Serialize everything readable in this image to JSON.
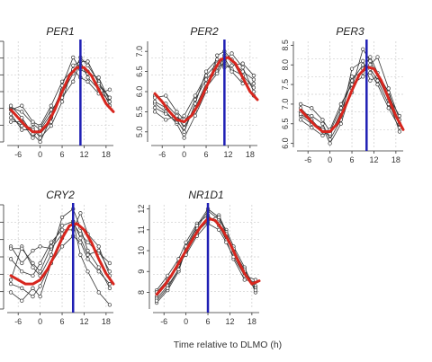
{
  "figure": {
    "xlabel": "Time relative to DLMO (h)"
  },
  "colors": {
    "individual": "#333333",
    "mean_fit": "#d7261e",
    "dlmo_line": "#1f1fb4",
    "grid": "#cccccc"
  },
  "chart_data": [
    {
      "type": "line",
      "title": "PER1",
      "xlabel": "",
      "ylabel": "",
      "x_ticks": [
        "-6",
        "0",
        "6",
        "12",
        "18"
      ],
      "y_ticks": [],
      "xlim": [
        -9,
        20
      ],
      "ylim": [
        5.0,
        7.5
      ],
      "vline_x": 11,
      "grid": true,
      "series": [
        {
          "x": [
            -8,
            -5,
            -2,
            0,
            3,
            6,
            9,
            11,
            13,
            16,
            19
          ],
          "y": [
            5.85,
            5.75,
            5.45,
            5.3,
            5.7,
            6.3,
            6.8,
            6.9,
            6.75,
            6.4,
            6.1
          ]
        },
        {
          "x": [
            -8,
            -5,
            -2,
            0,
            3,
            6,
            9,
            11,
            13,
            16,
            19
          ],
          "y": [
            5.9,
            5.6,
            5.2,
            5.0,
            5.6,
            6.2,
            6.7,
            7.1,
            6.9,
            6.5,
            5.9
          ]
        },
        {
          "x": [
            -8,
            -5,
            -2,
            0,
            3,
            6,
            9,
            11,
            13,
            16,
            19
          ],
          "y": [
            5.6,
            5.4,
            5.35,
            5.1,
            5.4,
            6.0,
            6.9,
            7.0,
            6.6,
            6.3,
            6.0
          ]
        },
        {
          "x": [
            -8,
            -5,
            -2,
            0,
            3,
            6,
            9,
            11,
            13,
            16,
            19
          ],
          "y": [
            5.8,
            5.9,
            5.5,
            5.4,
            5.9,
            6.5,
            6.8,
            6.6,
            6.5,
            6.2,
            6.3
          ]
        },
        {
          "x": [
            -8,
            -5,
            -2,
            0,
            3,
            6,
            9,
            11,
            13,
            16,
            19
          ],
          "y": [
            5.7,
            5.3,
            5.3,
            5.2,
            5.5,
            6.4,
            7.1,
            6.8,
            6.7,
            6.6,
            6.0
          ]
        },
        {
          "x": [
            -8,
            -5,
            -2,
            0,
            3,
            6,
            9,
            11,
            13,
            16,
            19
          ],
          "y": [
            5.5,
            5.5,
            5.1,
            5.35,
            5.8,
            6.1,
            6.5,
            7.0,
            7.0,
            6.45,
            6.1
          ]
        }
      ],
      "fit": {
        "x": [
          -8,
          -6,
          -4,
          -2,
          0,
          2,
          4,
          6,
          8,
          10,
          12,
          14,
          16,
          18,
          20
        ],
        "y": [
          5.8,
          5.6,
          5.4,
          5.25,
          5.25,
          5.45,
          5.8,
          6.25,
          6.65,
          6.85,
          6.85,
          6.65,
          6.3,
          5.95,
          5.75
        ]
      }
    },
    {
      "type": "line",
      "title": "PER2",
      "xlabel": "",
      "ylabel": "",
      "x_ticks": [
        "-6",
        "0",
        "6",
        "12",
        "18"
      ],
      "y_ticks": [
        "5.0",
        "5.5",
        "6.0",
        "6.5",
        "7.0"
      ],
      "xlim": [
        -9,
        20
      ],
      "ylim": [
        4.75,
        7.25
      ],
      "vline_x": 11,
      "grid": true,
      "series": [
        {
          "x": [
            -8,
            -5,
            -2,
            0,
            3,
            6,
            9,
            11,
            13,
            16,
            19
          ],
          "y": [
            5.9,
            5.7,
            5.4,
            5.1,
            5.6,
            6.2,
            6.5,
            6.9,
            6.75,
            6.5,
            6.3
          ]
        },
        {
          "x": [
            -8,
            -5,
            -2,
            0,
            3,
            6,
            9,
            11,
            13,
            16,
            19
          ],
          "y": [
            5.7,
            5.5,
            5.2,
            4.85,
            5.4,
            6.0,
            6.9,
            7.0,
            6.8,
            6.3,
            5.9
          ]
        },
        {
          "x": [
            -8,
            -5,
            -2,
            0,
            3,
            6,
            9,
            11,
            13,
            16,
            19
          ],
          "y": [
            5.5,
            5.3,
            5.4,
            5.2,
            5.8,
            6.3,
            6.6,
            6.7,
            6.55,
            6.4,
            6.1
          ]
        },
        {
          "x": [
            -8,
            -5,
            -2,
            0,
            3,
            6,
            9,
            11,
            13,
            16,
            19
          ],
          "y": [
            5.85,
            5.9,
            5.5,
            5.3,
            5.5,
            6.1,
            6.45,
            6.75,
            6.95,
            6.6,
            6.0
          ]
        },
        {
          "x": [
            -8,
            -5,
            -2,
            0,
            3,
            6,
            9,
            11,
            13,
            16,
            19
          ],
          "y": [
            5.6,
            5.45,
            5.25,
            5.4,
            5.9,
            6.4,
            6.7,
            6.85,
            6.5,
            6.2,
            6.2
          ]
        },
        {
          "x": [
            -8,
            -5,
            -2,
            0,
            3,
            6,
            9,
            11,
            13,
            16,
            19
          ],
          "y": [
            5.75,
            5.6,
            5.3,
            5.0,
            5.7,
            6.5,
            6.8,
            6.6,
            6.65,
            6.7,
            6.4
          ]
        }
      ],
      "fit": {
        "x": [
          -8,
          -6,
          -4,
          -2,
          0,
          2,
          4,
          6,
          8,
          10,
          12,
          14,
          16,
          18,
          20
        ],
        "y": [
          5.95,
          5.75,
          5.5,
          5.3,
          5.25,
          5.4,
          5.7,
          6.1,
          6.5,
          6.8,
          6.85,
          6.7,
          6.35,
          6.0,
          5.8
        ]
      }
    },
    {
      "type": "line",
      "title": "PER3",
      "xlabel": "",
      "ylabel": "",
      "x_ticks": [
        "-6",
        "0",
        "6",
        "12",
        "18"
      ],
      "y_ticks": [
        "6.0",
        "6.5",
        "7.0",
        "7.5",
        "8.0",
        "8.5"
      ],
      "xlim": [
        -9,
        20
      ],
      "ylim": [
        5.9,
        8.6
      ],
      "vline_x": 10,
      "grid": true,
      "series": [
        {
          "x": [
            -8,
            -5,
            -2,
            0,
            3,
            6,
            9,
            11,
            13,
            16,
            19
          ],
          "y": [
            6.9,
            6.6,
            6.3,
            6.2,
            6.8,
            7.6,
            8.0,
            7.9,
            7.6,
            7.0,
            6.5
          ]
        },
        {
          "x": [
            -8,
            -5,
            -2,
            0,
            3,
            6,
            9,
            11,
            13,
            16,
            19
          ],
          "y": [
            6.7,
            6.5,
            6.4,
            6.0,
            6.5,
            7.4,
            8.4,
            8.1,
            7.7,
            7.1,
            6.3
          ]
        },
        {
          "x": [
            -8,
            -5,
            -2,
            0,
            3,
            6,
            9,
            11,
            13,
            16,
            19
          ],
          "y": [
            7.0,
            6.9,
            6.6,
            6.3,
            6.9,
            7.7,
            7.8,
            8.0,
            8.2,
            7.4,
            6.6
          ]
        },
        {
          "x": [
            -8,
            -5,
            -2,
            0,
            3,
            6,
            9,
            11,
            13,
            16,
            19
          ],
          "y": [
            6.6,
            6.4,
            6.2,
            6.35,
            7.0,
            7.5,
            7.7,
            7.8,
            7.5,
            6.9,
            6.4
          ]
        },
        {
          "x": [
            -8,
            -5,
            -2,
            0,
            3,
            6,
            9,
            11,
            13,
            16,
            19
          ],
          "y": [
            6.8,
            6.7,
            6.5,
            6.1,
            6.6,
            7.9,
            8.1,
            7.6,
            7.7,
            7.2,
            6.7
          ]
        },
        {
          "x": [
            -8,
            -5,
            -2,
            0,
            3,
            6,
            9,
            11,
            13,
            16,
            19
          ],
          "y": [
            6.75,
            6.55,
            6.35,
            6.25,
            6.7,
            7.3,
            7.9,
            8.2,
            7.8,
            7.3,
            6.5
          ]
        }
      ],
      "fit": {
        "x": [
          -8,
          -6,
          -4,
          -2,
          0,
          2,
          4,
          6,
          8,
          10,
          12,
          14,
          16,
          18,
          20
        ],
        "y": [
          6.85,
          6.65,
          6.45,
          6.3,
          6.3,
          6.5,
          6.9,
          7.35,
          7.75,
          7.95,
          7.9,
          7.6,
          7.15,
          6.7,
          6.35
        ]
      }
    },
    {
      "type": "line",
      "title": "CRY2",
      "xlabel": "",
      "ylabel": "",
      "x_ticks": [
        "-6",
        "0",
        "6",
        "12",
        "18"
      ],
      "y_ticks": [],
      "xlim": [
        -9,
        20
      ],
      "ylim": [
        5.0,
        7.5
      ],
      "vline_x": 9,
      "grid": true,
      "series": [
        {
          "x": [
            -8,
            -5,
            -2,
            0,
            3,
            6,
            9,
            11,
            13,
            16,
            19
          ],
          "y": [
            6.5,
            6.1,
            6.4,
            6.5,
            6.45,
            6.8,
            7.05,
            6.8,
            6.6,
            6.35,
            6.1
          ]
        },
        {
          "x": [
            -8,
            -5,
            -2,
            0,
            3,
            6,
            9,
            11,
            13,
            16,
            19
          ],
          "y": [
            5.7,
            6.5,
            6.0,
            5.8,
            6.3,
            7.2,
            7.4,
            6.95,
            6.4,
            6.0,
            5.5
          ]
        },
        {
          "x": [
            -8,
            -5,
            -2,
            0,
            3,
            6,
            9,
            11,
            13,
            16,
            19
          ],
          "y": [
            5.4,
            5.2,
            5.5,
            5.3,
            6.1,
            6.7,
            7.1,
            6.3,
            5.9,
            5.4,
            5.1
          ]
        },
        {
          "x": [
            -8,
            -5,
            -2,
            0,
            3,
            6,
            9,
            11,
            13,
            16,
            19
          ],
          "y": [
            6.2,
            5.9,
            5.8,
            6.1,
            6.6,
            6.9,
            6.9,
            7.3,
            6.8,
            6.5,
            5.8
          ]
        },
        {
          "x": [
            -8,
            -5,
            -2,
            0,
            3,
            6,
            9,
            11,
            13,
            16,
            19
          ],
          "y": [
            5.6,
            5.5,
            5.3,
            5.55,
            6.1,
            6.5,
            6.75,
            6.6,
            6.2,
            5.9,
            5.6
          ]
        },
        {
          "x": [
            -8,
            -5,
            -2,
            0,
            3,
            6,
            9,
            11,
            13,
            16,
            19
          ],
          "y": [
            6.45,
            6.45,
            6.1,
            5.9,
            6.5,
            7.0,
            7.1,
            6.7,
            6.3,
            6.4,
            5.9
          ]
        }
      ],
      "fit": {
        "x": [
          -8,
          -6,
          -4,
          -2,
          0,
          2,
          4,
          6,
          8,
          10,
          12,
          14,
          16,
          18,
          20
        ],
        "y": [
          5.8,
          5.7,
          5.6,
          5.6,
          5.7,
          5.95,
          6.3,
          6.7,
          7.0,
          7.05,
          6.9,
          6.6,
          6.2,
          5.85,
          5.6
        ]
      }
    },
    {
      "type": "line",
      "title": "NR1D1",
      "xlabel": "",
      "ylabel": "",
      "x_ticks": [
        "-6",
        "0",
        "6",
        "12",
        "18"
      ],
      "y_ticks": [
        "8",
        "9",
        "10",
        "11",
        "12"
      ],
      "xlim": [
        -9,
        20
      ],
      "ylim": [
        7.2,
        12.2
      ],
      "vline_x": 6,
      "grid": true,
      "series": [
        {
          "x": [
            -8,
            -5,
            -2,
            0,
            3,
            6,
            9,
            11,
            13,
            16,
            19
          ],
          "y": [
            7.8,
            8.5,
            9.3,
            9.9,
            10.8,
            11.6,
            11.3,
            10.7,
            9.9,
            8.9,
            8.3
          ]
        },
        {
          "x": [
            -8,
            -5,
            -2,
            0,
            3,
            6,
            9,
            11,
            13,
            16,
            19
          ],
          "y": [
            7.5,
            8.1,
            9.0,
            10.1,
            11.1,
            11.9,
            11.5,
            11.0,
            10.2,
            9.2,
            8.0
          ]
        },
        {
          "x": [
            -8,
            -5,
            -2,
            0,
            3,
            6,
            9,
            11,
            13,
            16,
            19
          ],
          "y": [
            8.1,
            8.8,
            9.6,
            10.4,
            11.3,
            11.7,
            11.2,
            10.5,
            9.6,
            8.6,
            8.5
          ]
        },
        {
          "x": [
            -8,
            -5,
            -2,
            0,
            3,
            6,
            9,
            11,
            13,
            16,
            19
          ],
          "y": [
            7.7,
            8.3,
            9.1,
            10.0,
            10.9,
            11.4,
            11.7,
            10.9,
            10.0,
            9.1,
            8.2
          ]
        },
        {
          "x": [
            -8,
            -5,
            -2,
            0,
            3,
            6,
            9,
            11,
            13,
            16,
            19
          ],
          "y": [
            8.0,
            8.6,
            9.4,
            9.8,
            10.7,
            11.3,
            11.0,
            10.4,
            9.7,
            8.8,
            8.6
          ]
        },
        {
          "x": [
            -8,
            -5,
            -2,
            0,
            3,
            6,
            9,
            11,
            13,
            16,
            19
          ],
          "y": [
            7.6,
            8.2,
            9.1,
            10.2,
            11.2,
            12.0,
            11.6,
            10.8,
            10.1,
            9.0,
            8.1
          ]
        }
      ],
      "fit": {
        "x": [
          -8,
          -6,
          -4,
          -2,
          0,
          2,
          4,
          6,
          8,
          10,
          12,
          14,
          16,
          18,
          20
        ],
        "y": [
          7.9,
          8.3,
          8.8,
          9.4,
          10.0,
          10.6,
          11.15,
          11.55,
          11.45,
          11.0,
          10.35,
          9.6,
          8.9,
          8.4,
          8.55
        ]
      }
    }
  ]
}
